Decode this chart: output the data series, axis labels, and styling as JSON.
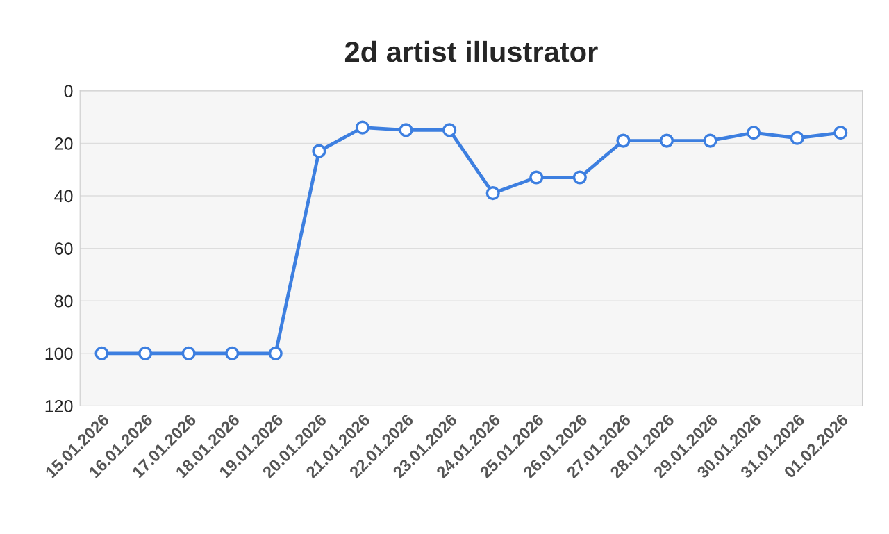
{
  "chart_data": {
    "type": "line",
    "title": "2d artist illustrator",
    "categories": [
      "15.01.2026",
      "16.01.2026",
      "17.01.2026",
      "18.01.2026",
      "19.01.2026",
      "20.01.2026",
      "21.01.2026",
      "22.01.2026",
      "23.01.2026",
      "24.01.2026",
      "25.01.2026",
      "26.01.2026",
      "27.01.2026",
      "28.01.2026",
      "29.01.2026",
      "30.01.2026",
      "31.01.2026",
      "01.02.2026"
    ],
    "series": [
      {
        "color": "#3d7fe0",
        "values": [
          100,
          100,
          100,
          100,
          100,
          23,
          14,
          15,
          15,
          39,
          33,
          33,
          19,
          19,
          19,
          16,
          18,
          16
        ]
      }
    ],
    "ylim": [
      120,
      0
    ],
    "yticks": [
      0,
      20,
      40,
      60,
      80,
      100,
      120
    ],
    "grid": "y",
    "marker": "circle",
    "line_style": "solid"
  }
}
